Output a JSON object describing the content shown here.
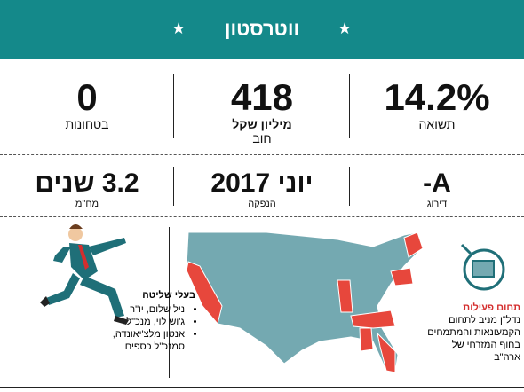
{
  "header": {
    "title": "ווטרסטון"
  },
  "stats": [
    {
      "value": "14.2%",
      "label": "תשואה"
    },
    {
      "value": "418",
      "unit": "מיליון שקל",
      "label": "חוב"
    },
    {
      "value": "0",
      "label": "בטחונות"
    },
    {
      "value": "A-",
      "label": "דירוג"
    },
    {
      "value": "יוני 2017",
      "label": "הנפקה"
    },
    {
      "value": "3.2 שנים",
      "label": "מח\"מ"
    }
  ],
  "owners": {
    "title": "בעלי שליטה",
    "items": [
      "ניל שלום, יו\"ר",
      "ג'וש לוי, מנכ\"ל",
      "אנטון מלצ'יאונדה, סמנכ\"ל כספים"
    ]
  },
  "activity": {
    "title": "תחום פעילות",
    "text": "נדל\"ן מניב לתחום הקמעונאות והמתמחים בחוף המזרחי של ארה\"ב"
  }
}
